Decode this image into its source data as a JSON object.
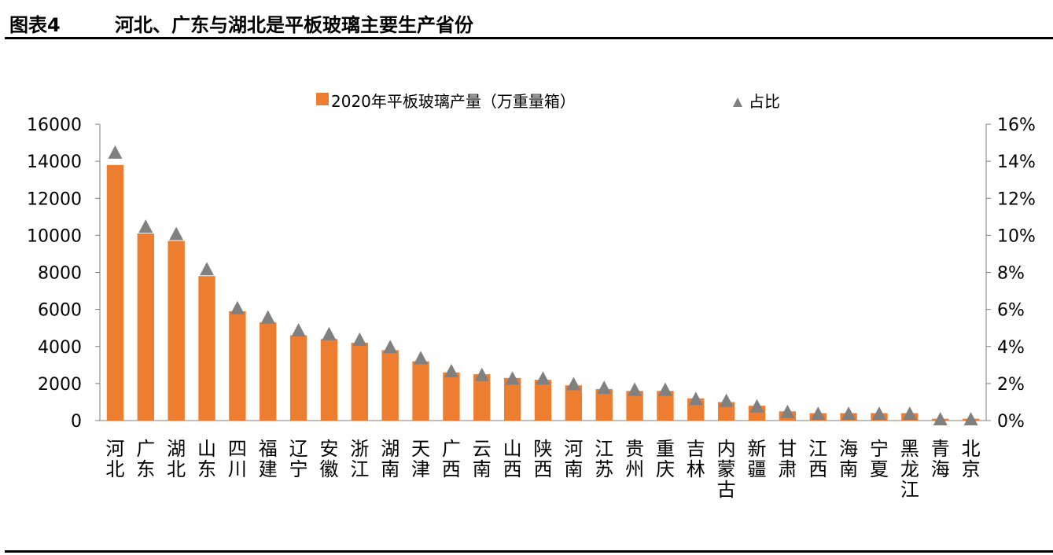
{
  "header": {
    "figure_no": "图表4",
    "title": "河北、广东与湖北是平板玻璃主要生产省份"
  },
  "chart_data": {
    "type": "bar",
    "categories": [
      "河北",
      "广东",
      "湖北",
      "山东",
      "四川",
      "福建",
      "辽宁",
      "安徽",
      "浙江",
      "湖南",
      "天津",
      "广西",
      "云南",
      "山西",
      "陕西",
      "河南",
      "江苏",
      "贵州",
      "重庆",
      "吉林",
      "内蒙古",
      "新疆",
      "甘肃",
      "江西",
      "海南",
      "宁夏",
      "黑龙江",
      "青海",
      "北京"
    ],
    "series": [
      {
        "name": "2020年平板玻璃产量（万重量箱）",
        "type": "bar",
        "axis": "left",
        "color": "#ED7D31",
        "values": [
          13800,
          10100,
          9700,
          7800,
          5900,
          5300,
          4600,
          4400,
          4200,
          3800,
          3200,
          2600,
          2500,
          2300,
          2200,
          1900,
          1700,
          1600,
          1600,
          1200,
          1000,
          800,
          500,
          400,
          400,
          400,
          400,
          100,
          100
        ]
      },
      {
        "name": "占比",
        "type": "scatter",
        "marker": "triangle",
        "axis": "right",
        "color": "#808080",
        "values": [
          14.5,
          10.5,
          10.1,
          8.2,
          6.1,
          5.6,
          4.9,
          4.7,
          4.4,
          4.0,
          3.4,
          2.7,
          2.5,
          2.3,
          2.3,
          2.0,
          1.8,
          1.7,
          1.7,
          1.2,
          1.1,
          0.8,
          0.5,
          0.4,
          0.4,
          0.4,
          0.4,
          0.1,
          0.1
        ]
      }
    ],
    "y_left": {
      "min": 0,
      "max": 16000,
      "ticks": [
        "0",
        "2000",
        "4000",
        "6000",
        "8000",
        "10000",
        "12000",
        "14000",
        "16000"
      ]
    },
    "y_right": {
      "min": 0,
      "max": 16,
      "ticks": [
        "0%",
        "2%",
        "4%",
        "6%",
        "8%",
        "10%",
        "12%",
        "14%",
        "16%"
      ]
    },
    "legend_position": "top-center",
    "grid": false
  }
}
